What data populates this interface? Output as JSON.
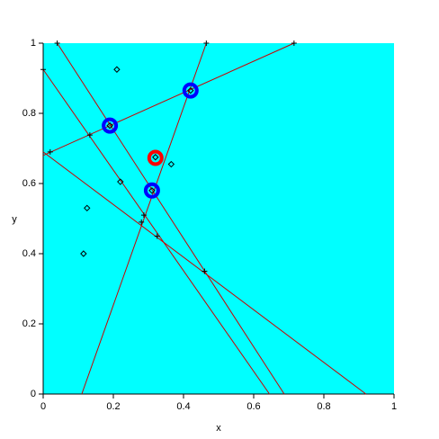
{
  "chart_data": {
    "type": "line",
    "xlabel": "x",
    "ylabel": "y",
    "xlim": [
      0,
      1
    ],
    "ylim": [
      0,
      1
    ],
    "xticks": [
      0,
      0.2,
      0.4,
      0.6,
      0.8,
      1
    ],
    "yticks": [
      0,
      0.2,
      0.4,
      0.6,
      0.8,
      1
    ],
    "background": "#00ffff",
    "series": [
      {
        "marker": "none",
        "color": "#cc0000",
        "x": [
          0,
          0.645
        ],
        "values": [
          0.925,
          0
        ]
      },
      {
        "marker": "none",
        "color": "#cc0000",
        "x": [
          0.04,
          0.687
        ],
        "values": [
          1,
          0
        ]
      },
      {
        "marker": "none",
        "color": "#cc0000",
        "x": [
          0,
          0.92
        ],
        "values": [
          0.69,
          0
        ]
      },
      {
        "marker": "none",
        "color": "#cc0000",
        "x": [
          0.11,
          0.465
        ],
        "values": [
          0,
          1
        ]
      },
      {
        "marker": "none",
        "color": "#cc0000",
        "x": [
          0,
          0.715
        ],
        "values": [
          0.68,
          1
        ]
      },
      {
        "marker": "cross",
        "color": "#000000",
        "x": [
          0.133,
          0.02,
          0.287,
          0.28,
          0.325,
          0.46,
          0,
          0.04,
          0.465,
          0.715
        ],
        "values": [
          0.738,
          0.69,
          0.51,
          0.49,
          0.45,
          0.35,
          0.925,
          1,
          1,
          1
        ]
      },
      {
        "marker": "diamond",
        "color": "#000000",
        "x": [
          0.21,
          0.22,
          0.125,
          0.115,
          0.365,
          0.32,
          0.19,
          0.31,
          0.42
        ],
        "values": [
          0.925,
          0.605,
          0.53,
          0.4,
          0.655,
          0.675,
          0.765,
          0.58,
          0.865
        ]
      },
      {
        "marker": "circle",
        "color": "#0000ff",
        "x": [
          0.19,
          0.31,
          0.42
        ],
        "values": [
          0.765,
          0.58,
          0.865
        ]
      },
      {
        "marker": "circle",
        "color": "#ff0000",
        "x": [
          0.32
        ],
        "values": [
          0.673
        ]
      }
    ]
  }
}
